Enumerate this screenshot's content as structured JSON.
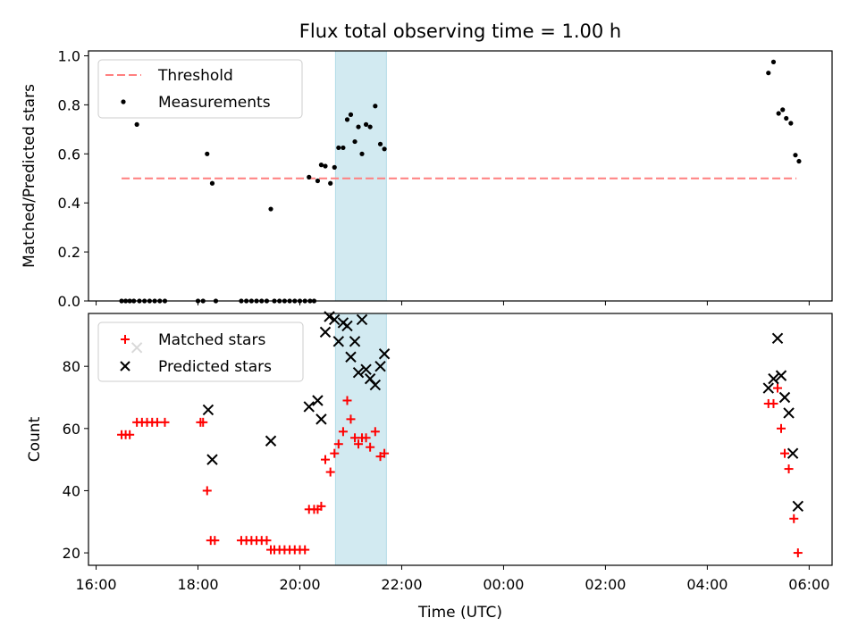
{
  "chart_data": {
    "title": "Flux total observing time = 1.00 h",
    "xlabel": "Time (UTC)",
    "x_tick_labels": [
      "16:00",
      "18:00",
      "20:00",
      "22:00",
      "00:00",
      "02:00",
      "04:00",
      "06:00"
    ],
    "x_tick_hours": [
      16,
      18,
      20,
      22,
      24,
      26,
      28,
      30
    ],
    "xlim_hours": [
      15.85,
      30.45
    ],
    "highlight_span_hours": [
      20.7,
      21.7
    ],
    "colors": {
      "threshold": "#ff7f7f",
      "measurements": "#000000",
      "matched": "#ff0000",
      "predicted": "#000000",
      "span": "#add8e6"
    },
    "panels": [
      {
        "type": "scatter",
        "ylabel": "Matched/Predicted stars",
        "ylim": [
          0,
          1.02
        ],
        "y_ticks": [
          0.0,
          0.2,
          0.4,
          0.6,
          0.8,
          1.0
        ],
        "y_tick_labels": [
          "0.0",
          "0.2",
          "0.4",
          "0.6",
          "0.8",
          "1.0"
        ],
        "legend": {
          "position": "top-left",
          "entries": [
            {
              "label": "Threshold",
              "style": "dashed-line",
              "color": "#ff7f7f"
            },
            {
              "label": "Measurements",
              "style": "dot",
              "color": "#000000"
            }
          ]
        },
        "threshold": {
          "value": 0.5,
          "x_start": 16.5,
          "x_end": 29.75
        },
        "measurements": [
          [
            16.5,
            0
          ],
          [
            16.58,
            0
          ],
          [
            16.66,
            0
          ],
          [
            16.74,
            0
          ],
          [
            16.8,
            0.72
          ],
          [
            16.85,
            0
          ],
          [
            16.95,
            0
          ],
          [
            17.05,
            0
          ],
          [
            17.15,
            0
          ],
          [
            17.25,
            0
          ],
          [
            17.35,
            0
          ],
          [
            18.0,
            0
          ],
          [
            18.1,
            0
          ],
          [
            18.18,
            0.6
          ],
          [
            18.28,
            0.48
          ],
          [
            18.35,
            0
          ],
          [
            18.85,
            0
          ],
          [
            18.95,
            0
          ],
          [
            19.05,
            0
          ],
          [
            19.15,
            0
          ],
          [
            19.25,
            0
          ],
          [
            19.35,
            0
          ],
          [
            19.43,
            0.375
          ],
          [
            19.5,
            0
          ],
          [
            19.6,
            0
          ],
          [
            19.7,
            0
          ],
          [
            19.8,
            0
          ],
          [
            19.9,
            0
          ],
          [
            20.0,
            0
          ],
          [
            20.1,
            0
          ],
          [
            20.2,
            0
          ],
          [
            20.28,
            0
          ],
          [
            20.18,
            0.505
          ],
          [
            20.35,
            0.49
          ],
          [
            20.42,
            0.555
          ],
          [
            20.5,
            0.55
          ],
          [
            20.6,
            0.48
          ],
          [
            20.68,
            0.545
          ],
          [
            20.76,
            0.625
          ],
          [
            20.85,
            0.625
          ],
          [
            20.93,
            0.74
          ],
          [
            21.0,
            0.76
          ],
          [
            21.08,
            0.65
          ],
          [
            21.15,
            0.71
          ],
          [
            21.22,
            0.6
          ],
          [
            21.3,
            0.72
          ],
          [
            21.38,
            0.71
          ],
          [
            21.48,
            0.795
          ],
          [
            21.58,
            0.64
          ],
          [
            21.66,
            0.62
          ],
          [
            29.2,
            0.93
          ],
          [
            29.3,
            0.975
          ],
          [
            29.4,
            0.765
          ],
          [
            29.48,
            0.78
          ],
          [
            29.55,
            0.745
          ],
          [
            29.64,
            0.725
          ],
          [
            29.73,
            0.595
          ],
          [
            29.8,
            0.57
          ]
        ]
      },
      {
        "type": "scatter",
        "ylabel": "Count",
        "ylim": [
          16,
          97
        ],
        "y_ticks": [
          20,
          40,
          60,
          80
        ],
        "y_tick_labels": [
          "20",
          "40",
          "60",
          "80"
        ],
        "legend": {
          "position": "top-left",
          "entries": [
            {
              "label": "Matched stars",
              "style": "plus",
              "color": "#ff0000"
            },
            {
              "label": "Predicted stars",
              "style": "x",
              "color": "#000000"
            }
          ]
        },
        "matched": [
          [
            16.5,
            58
          ],
          [
            16.58,
            58
          ],
          [
            16.66,
            58
          ],
          [
            16.8,
            62
          ],
          [
            16.9,
            62
          ],
          [
            17.0,
            62
          ],
          [
            17.1,
            62
          ],
          [
            17.2,
            62
          ],
          [
            17.35,
            62
          ],
          [
            18.05,
            62
          ],
          [
            18.1,
            62
          ],
          [
            18.18,
            40
          ],
          [
            18.25,
            24
          ],
          [
            18.33,
            24
          ],
          [
            18.85,
            24
          ],
          [
            18.95,
            24
          ],
          [
            19.05,
            24
          ],
          [
            19.15,
            24
          ],
          [
            19.25,
            24
          ],
          [
            19.35,
            24
          ],
          [
            19.43,
            21
          ],
          [
            19.5,
            21
          ],
          [
            19.6,
            21
          ],
          [
            19.7,
            21
          ],
          [
            19.8,
            21
          ],
          [
            19.9,
            21
          ],
          [
            20.0,
            21
          ],
          [
            20.1,
            21
          ],
          [
            20.18,
            34
          ],
          [
            20.28,
            34
          ],
          [
            20.35,
            34
          ],
          [
            20.42,
            35
          ],
          [
            20.5,
            50
          ],
          [
            20.6,
            46
          ],
          [
            20.68,
            52
          ],
          [
            20.76,
            55
          ],
          [
            20.85,
            59
          ],
          [
            20.93,
            69
          ],
          [
            21.0,
            63
          ],
          [
            21.08,
            57
          ],
          [
            21.15,
            55
          ],
          [
            21.22,
            57
          ],
          [
            21.3,
            57
          ],
          [
            21.38,
            54
          ],
          [
            21.48,
            59
          ],
          [
            21.58,
            51
          ],
          [
            21.66,
            52
          ],
          [
            29.2,
            68
          ],
          [
            29.3,
            68
          ],
          [
            29.38,
            73
          ],
          [
            29.45,
            60
          ],
          [
            29.52,
            52
          ],
          [
            29.6,
            47
          ],
          [
            29.7,
            31
          ],
          [
            29.78,
            20
          ]
        ],
        "predicted": [
          [
            16.8,
            86
          ],
          [
            18.2,
            66
          ],
          [
            18.28,
            50
          ],
          [
            19.43,
            56
          ],
          [
            20.18,
            67
          ],
          [
            20.35,
            69
          ],
          [
            20.42,
            63
          ],
          [
            20.5,
            91
          ],
          [
            20.58,
            96
          ],
          [
            20.68,
            95
          ],
          [
            20.76,
            88
          ],
          [
            20.85,
            94
          ],
          [
            20.93,
            93
          ],
          [
            21.0,
            83
          ],
          [
            21.08,
            88
          ],
          [
            21.15,
            78
          ],
          [
            21.22,
            95
          ],
          [
            21.3,
            79
          ],
          [
            21.38,
            76
          ],
          [
            21.48,
            74
          ],
          [
            21.58,
            80
          ],
          [
            21.66,
            84
          ],
          [
            29.2,
            73
          ],
          [
            29.3,
            76
          ],
          [
            29.38,
            89
          ],
          [
            29.45,
            77
          ],
          [
            29.52,
            70
          ],
          [
            29.6,
            65
          ],
          [
            29.68,
            52
          ],
          [
            29.78,
            35
          ]
        ]
      }
    ]
  }
}
